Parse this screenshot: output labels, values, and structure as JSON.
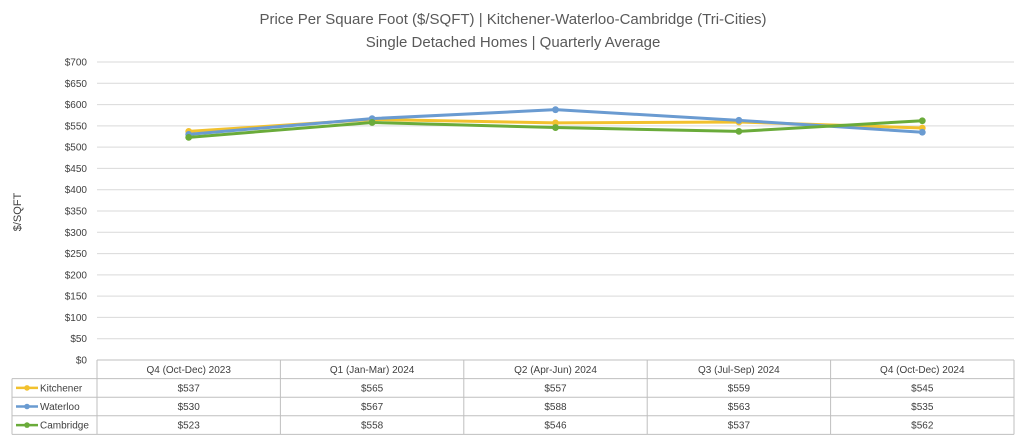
{
  "chart_data": {
    "type": "line",
    "title": "Price Per Square Foot ($/SQFT) | Kitchener-Waterloo-Cambridge (Tri-Cities)",
    "subtitle": "Single Detached Homes | Quarterly Average",
    "ylabel": "$/SQFT",
    "xlabel": "",
    "ylim": [
      0,
      700
    ],
    "y_ticks": [
      0,
      50,
      100,
      150,
      200,
      250,
      300,
      350,
      400,
      450,
      500,
      550,
      600,
      650,
      700
    ],
    "y_tick_labels": [
      "$0",
      "$50",
      "$100",
      "$150",
      "$200",
      "$250",
      "$300",
      "$350",
      "$400",
      "$450",
      "$500",
      "$550",
      "$600",
      "$650",
      "$700"
    ],
    "grid": true,
    "legend": "data table (left of rows)",
    "categories": [
      "Q4 (Oct-Dec) 2023",
      "Q1 (Jan-Mar) 2024",
      "Q2 (Apr-Jun) 2024",
      "Q3 (Jul-Sep) 2024",
      "Q4 (Oct-Dec) 2024"
    ],
    "series": [
      {
        "name": "Kitchener",
        "color": "#f2c12e",
        "values": [
          537,
          565,
          557,
          559,
          545
        ],
        "labels": [
          "$537",
          "$565",
          "$557",
          "$559",
          "$545"
        ]
      },
      {
        "name": "Waterloo",
        "color": "#6a9bd1",
        "values": [
          530,
          567,
          588,
          563,
          535
        ],
        "labels": [
          "$530",
          "$567",
          "$588",
          "$563",
          "$535"
        ]
      },
      {
        "name": "Cambridge",
        "color": "#6aab3a",
        "values": [
          523,
          558,
          546,
          537,
          562
        ],
        "labels": [
          "$523",
          "$558",
          "$546",
          "$537",
          "$562"
        ]
      }
    ]
  }
}
